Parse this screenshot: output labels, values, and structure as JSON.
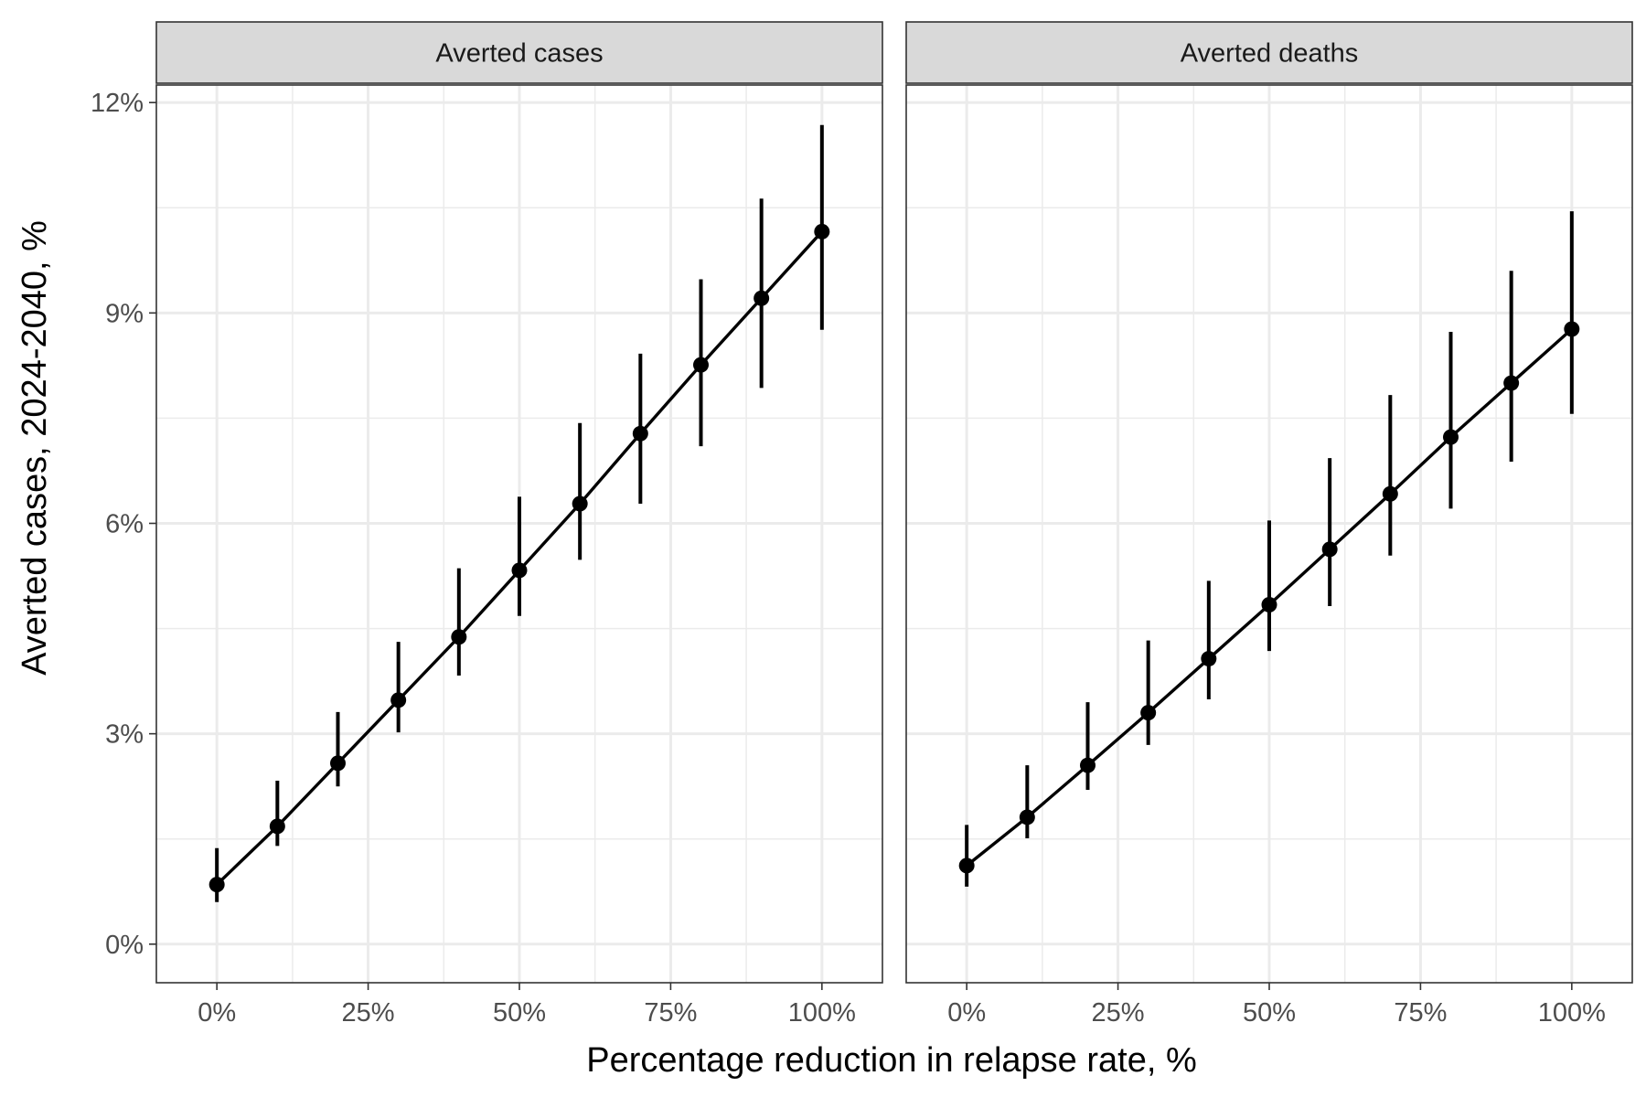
{
  "chart_data": {
    "type": "line",
    "x_axis": {
      "label": "Percentage reduction in relapse rate, %",
      "range": [
        -10,
        110
      ],
      "ticks": [
        0,
        25,
        50,
        75,
        100
      ],
      "tick_labels": [
        "0%",
        "25%",
        "50%",
        "75%",
        "100%"
      ]
    },
    "y_axis": {
      "label": "Averted cases, 2024-2040, %",
      "range": [
        -0.55,
        12.25
      ],
      "ticks": [
        0,
        3,
        6,
        9,
        12
      ],
      "tick_labels": [
        "0%",
        "3%",
        "6%",
        "9%",
        "12%"
      ]
    },
    "grid": true,
    "facets": [
      {
        "title": "Averted cases",
        "x": [
          0,
          10,
          20,
          30,
          40,
          50,
          60,
          70,
          80,
          90,
          100
        ],
        "y": [
          0.85,
          1.68,
          2.58,
          3.48,
          4.38,
          5.33,
          6.28,
          7.28,
          8.26,
          9.21,
          10.16
        ],
        "lower": [
          0.6,
          1.4,
          2.25,
          3.02,
          3.83,
          4.68,
          5.48,
          6.28,
          7.1,
          7.93,
          8.76
        ],
        "upper": [
          1.37,
          2.33,
          3.31,
          4.31,
          5.36,
          6.38,
          7.43,
          8.42,
          9.48,
          10.63,
          11.68
        ]
      },
      {
        "title": "Averted deaths",
        "x": [
          0,
          10,
          20,
          30,
          40,
          50,
          60,
          70,
          80,
          90,
          100
        ],
        "y": [
          1.12,
          1.81,
          2.55,
          3.3,
          4.07,
          4.84,
          5.63,
          6.42,
          7.23,
          8.0,
          8.77
        ],
        "lower": [
          0.82,
          1.51,
          2.2,
          2.84,
          3.49,
          4.18,
          4.82,
          5.54,
          6.21,
          6.88,
          7.56
        ],
        "upper": [
          1.7,
          2.55,
          3.45,
          4.33,
          5.18,
          6.04,
          6.93,
          7.83,
          8.73,
          9.6,
          10.45
        ]
      }
    ]
  }
}
